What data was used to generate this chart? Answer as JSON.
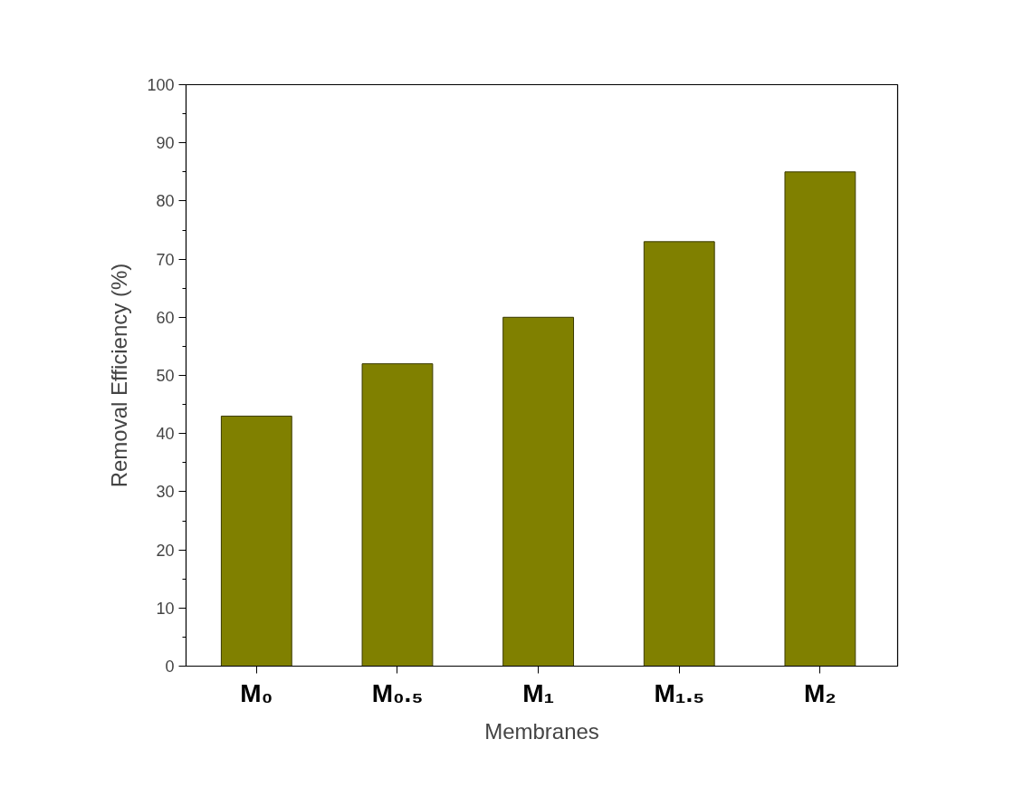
{
  "chart_data": {
    "type": "bar",
    "xlabel": "Membranes",
    "ylabel": "Removal Efficiency (%)",
    "categories": [
      "M₀",
      "M₀.₅",
      "M₁",
      "M₁.₅",
      "M₂"
    ],
    "values": [
      43,
      52,
      60,
      73,
      85
    ],
    "color": "#808000",
    "ylim": [
      0,
      100
    ],
    "yticks": [
      0,
      10,
      20,
      30,
      40,
      50,
      60,
      70,
      80,
      90,
      100
    ],
    "grid": false
  }
}
